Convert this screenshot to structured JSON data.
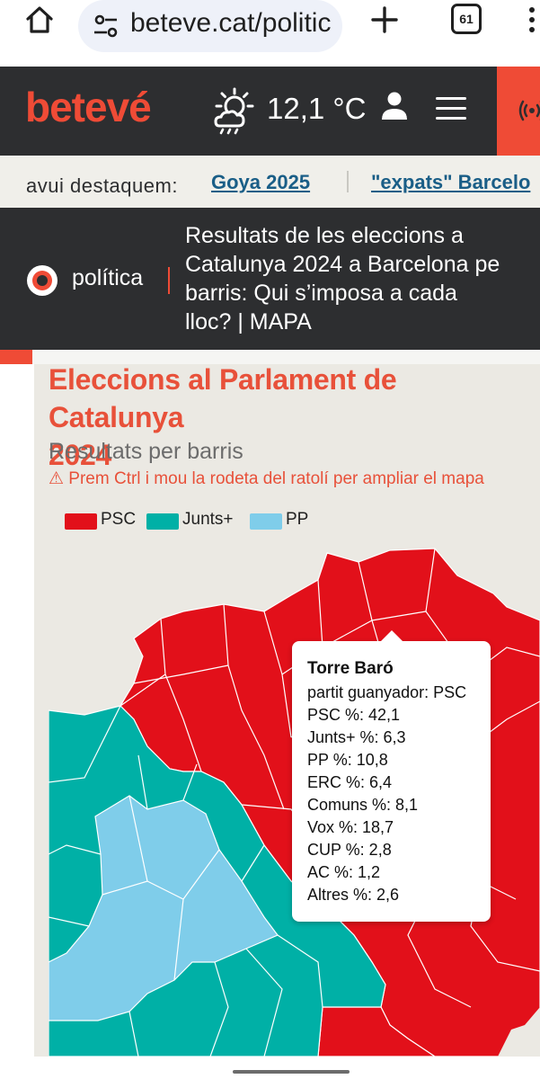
{
  "browser": {
    "url": "beteve.cat/politic",
    "tab_count": "61",
    "icons": [
      "home-icon",
      "site-settings-icon",
      "plus-icon",
      "tabs-icon",
      "more-vert-icon"
    ]
  },
  "header": {
    "logo": "betevé",
    "temperature": "12,1 °C",
    "icons": [
      "weather-icon",
      "user-icon",
      "hamburger-icon",
      "radio-icon"
    ],
    "accent_color": "#ef4b36",
    "bg_color": "#2d2e30"
  },
  "highlights": {
    "label": "avui destaquem:",
    "links": [
      "Goya 2025",
      "\"expats\" Barcelo"
    ]
  },
  "article": {
    "category": "política",
    "title_lines": [
      "Resultats de les eleccions a",
      "Catalunya 2024 a Barcelona pe",
      "barris: Qui s’imposa a cada",
      "lloc? | MAPA"
    ]
  },
  "map": {
    "title_lines": [
      "Eleccions al Parlament de Catalunya",
      "2024"
    ],
    "subtitle": "Resultats per barris",
    "hint": "⚠ Prem Ctrl i mou la rodeta del ratolí per ampliar el mapa",
    "legend": [
      {
        "label": "PSC",
        "color": "#e2101a"
      },
      {
        "label": "Junts+",
        "color": "#00b0a6"
      },
      {
        "label": "PP",
        "color": "#7fcdea"
      }
    ]
  },
  "tooltip": {
    "title": "Torre Baró",
    "rows": [
      "partit guanyador: PSC",
      "PSC %: 42,1",
      "Junts+ %: 6,3",
      "PP %: 10,8",
      "ERC %: 6,4",
      "Comuns %: 8,1",
      "Vox %: 18,7",
      "CUP %: 2,8",
      "AC %: 1,2",
      "Altres %: 2,6"
    ]
  }
}
